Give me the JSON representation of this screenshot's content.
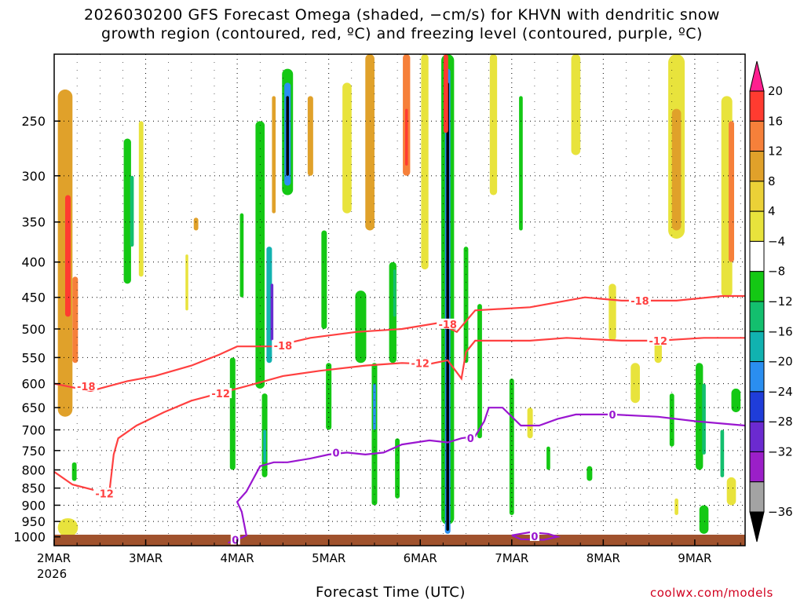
{
  "chart_data": {
    "type": "heatmap",
    "title_line1": "2026030200 GFS Forecast Omega (shaded, −cm/s) for KHVN with dendritic snow",
    "title_line2": "growth region (contoured, red, ºC) and freezing level (contoured, purple, ºC)",
    "xlabel": "Forecast Time (UTC)",
    "x_ticks": [
      "2MAR",
      "3MAR",
      "4MAR",
      "5MAR",
      "6MAR",
      "7MAR",
      "8MAR",
      "9MAR"
    ],
    "x_year": "2026",
    "x_range_days": [
      0,
      7.55
    ],
    "y_ticks": [
      "250",
      "300",
      "350",
      "400",
      "450",
      "500",
      "550",
      "600",
      "650",
      "700",
      "750",
      "800",
      "850",
      "900",
      "950",
      "1000"
    ],
    "y_range_hpa": [
      200,
      1030
    ],
    "colorbar": {
      "labels": [
        "20",
        "16",
        "12",
        "8",
        "4",
        "−4",
        "−8",
        "−12",
        "−16",
        "−20",
        "−24",
        "−28",
        "−32",
        "−36"
      ],
      "colors": [
        "#ff1f8f",
        "#ff3b30",
        "#f6803a",
        "#e0a12a",
        "#ebd137",
        "#e8e33c",
        "#ffffff",
        "#14c814",
        "#13bf6e",
        "#11b2b0",
        "#2a8ef0",
        "#1f3dd9",
        "#6b2ad0",
        "#9b1fc8",
        "#a3a3a3",
        "#000000"
      ]
    },
    "omega_blobs": [
      {
        "day": 0.12,
        "p1": 225,
        "p2": 670,
        "w": 0.16,
        "level": 8
      },
      {
        "day": 0.15,
        "p1": 320,
        "p2": 480,
        "w": 0.06,
        "level": 16
      },
      {
        "day": 0.23,
        "p1": 420,
        "p2": 560,
        "w": 0.06,
        "level": 12
      },
      {
        "day": 0.15,
        "p1": 940,
        "p2": 1000,
        "w": 0.22,
        "level": 4
      },
      {
        "day": 0.22,
        "p1": 780,
        "p2": 830,
        "w": 0.05,
        "level": -8
      },
      {
        "day": 0.8,
        "p1": 265,
        "p2": 430,
        "w": 0.08,
        "level": -8
      },
      {
        "day": 0.85,
        "p1": 300,
        "p2": 380,
        "w": 0.04,
        "level": -12
      },
      {
        "day": 0.95,
        "p1": 250,
        "p2": 420,
        "w": 0.05,
        "level": 4
      },
      {
        "day": 1.45,
        "p1": 390,
        "p2": 470,
        "w": 0.03,
        "level": 4
      },
      {
        "day": 1.55,
        "p1": 345,
        "p2": 360,
        "w": 0.05,
        "level": 8
      },
      {
        "day": 2.05,
        "p1": 340,
        "p2": 450,
        "w": 0.04,
        "level": -8
      },
      {
        "day": 1.95,
        "p1": 550,
        "p2": 800,
        "w": 0.06,
        "level": -8
      },
      {
        "day": 2.25,
        "p1": 250,
        "p2": 610,
        "w": 0.1,
        "level": -8
      },
      {
        "day": 2.3,
        "p1": 620,
        "p2": 820,
        "w": 0.06,
        "level": -8
      },
      {
        "day": 2.3,
        "p1": 700,
        "p2": 780,
        "w": 0.03,
        "level": -16
      },
      {
        "day": 2.35,
        "p1": 380,
        "p2": 560,
        "w": 0.06,
        "level": -16
      },
      {
        "day": 2.38,
        "p1": 430,
        "p2": 520,
        "w": 0.03,
        "level": -28
      },
      {
        "day": 2.55,
        "p1": 210,
        "p2": 320,
        "w": 0.12,
        "level": -8
      },
      {
        "day": 2.55,
        "p1": 220,
        "p2": 310,
        "w": 0.07,
        "level": -20
      },
      {
        "day": 2.55,
        "p1": 230,
        "p2": 300,
        "w": 0.03,
        "level": -36
      },
      {
        "day": 2.4,
        "p1": 230,
        "p2": 340,
        "w": 0.04,
        "level": 8
      },
      {
        "day": 2.8,
        "p1": 230,
        "p2": 300,
        "w": 0.06,
        "level": 8
      },
      {
        "day": 2.95,
        "p1": 360,
        "p2": 500,
        "w": 0.06,
        "level": -8
      },
      {
        "day": 3.0,
        "p1": 560,
        "p2": 700,
        "w": 0.06,
        "level": -8
      },
      {
        "day": 3.2,
        "p1": 220,
        "p2": 340,
        "w": 0.1,
        "level": 4
      },
      {
        "day": 3.35,
        "p1": 440,
        "p2": 560,
        "w": 0.12,
        "level": -8
      },
      {
        "day": 3.45,
        "p1": 200,
        "p2": 360,
        "w": 0.1,
        "level": 8
      },
      {
        "day": 3.5,
        "p1": 560,
        "p2": 900,
        "w": 0.06,
        "level": -8
      },
      {
        "day": 3.5,
        "p1": 600,
        "p2": 700,
        "w": 0.03,
        "level": -20
      },
      {
        "day": 3.7,
        "p1": 400,
        "p2": 560,
        "w": 0.08,
        "level": -8
      },
      {
        "day": 3.72,
        "p1": 410,
        "p2": 480,
        "w": 0.03,
        "level": -12
      },
      {
        "day": 3.85,
        "p1": 200,
        "p2": 300,
        "w": 0.08,
        "level": 12
      },
      {
        "day": 3.85,
        "p1": 240,
        "p2": 290,
        "w": 0.03,
        "level": 16
      },
      {
        "day": 3.75,
        "p1": 720,
        "p2": 880,
        "w": 0.05,
        "level": -8
      },
      {
        "day": 4.05,
        "p1": 200,
        "p2": 410,
        "w": 0.08,
        "level": 4
      },
      {
        "day": 4.3,
        "p1": 200,
        "p2": 960,
        "w": 0.14,
        "level": -8
      },
      {
        "day": 4.3,
        "p1": 210,
        "p2": 990,
        "w": 0.06,
        "level": -20
      },
      {
        "day": 4.3,
        "p1": 220,
        "p2": 980,
        "w": 0.03,
        "level": -36
      },
      {
        "day": 4.28,
        "p1": 200,
        "p2": 260,
        "w": 0.05,
        "level": 16
      },
      {
        "day": 4.5,
        "p1": 380,
        "p2": 560,
        "w": 0.05,
        "level": -8
      },
      {
        "day": 4.65,
        "p1": 460,
        "p2": 720,
        "w": 0.05,
        "level": -8
      },
      {
        "day": 4.8,
        "p1": 200,
        "p2": 320,
        "w": 0.08,
        "level": 4
      },
      {
        "day": 5.1,
        "p1": 230,
        "p2": 360,
        "w": 0.04,
        "level": -8
      },
      {
        "day": 5.0,
        "p1": 590,
        "p2": 930,
        "w": 0.05,
        "level": -8
      },
      {
        "day": 5.2,
        "p1": 650,
        "p2": 720,
        "w": 0.06,
        "level": 4
      },
      {
        "day": 5.4,
        "p1": 740,
        "p2": 800,
        "w": 0.04,
        "level": -8
      },
      {
        "day": 5.7,
        "p1": 200,
        "p2": 280,
        "w": 0.1,
        "level": 4
      },
      {
        "day": 5.85,
        "p1": 790,
        "p2": 830,
        "w": 0.06,
        "level": -8
      },
      {
        "day": 6.1,
        "p1": 430,
        "p2": 520,
        "w": 0.08,
        "level": 4
      },
      {
        "day": 6.35,
        "p1": 560,
        "p2": 640,
        "w": 0.1,
        "level": 4
      },
      {
        "day": 6.6,
        "p1": 520,
        "p2": 560,
        "w": 0.08,
        "level": 4
      },
      {
        "day": 6.8,
        "p1": 200,
        "p2": 370,
        "w": 0.18,
        "level": 4
      },
      {
        "day": 6.8,
        "p1": 240,
        "p2": 360,
        "w": 0.1,
        "level": 8
      },
      {
        "day": 6.75,
        "p1": 620,
        "p2": 740,
        "w": 0.05,
        "level": -8
      },
      {
        "day": 6.8,
        "p1": 880,
        "p2": 930,
        "w": 0.04,
        "level": 4
      },
      {
        "day": 7.05,
        "p1": 560,
        "p2": 800,
        "w": 0.08,
        "level": -8
      },
      {
        "day": 7.1,
        "p1": 600,
        "p2": 760,
        "w": 0.04,
        "level": -12
      },
      {
        "day": 7.1,
        "p1": 900,
        "p2": 990,
        "w": 0.1,
        "level": -8
      },
      {
        "day": 7.35,
        "p1": 230,
        "p2": 450,
        "w": 0.12,
        "level": 4
      },
      {
        "day": 7.4,
        "p1": 250,
        "p2": 400,
        "w": 0.06,
        "level": 12
      },
      {
        "day": 7.45,
        "p1": 610,
        "p2": 660,
        "w": 0.1,
        "level": -8
      },
      {
        "day": 7.4,
        "p1": 820,
        "p2": 900,
        "w": 0.1,
        "level": 4
      },
      {
        "day": 7.3,
        "p1": 700,
        "p2": 820,
        "w": 0.04,
        "level": -12
      }
    ],
    "contours": [
      {
        "label": "-18",
        "color": "#ff4040",
        "points": [
          [
            0,
            600
          ],
          [
            0.4,
            615
          ],
          [
            0.8,
            595
          ],
          [
            1.1,
            585
          ],
          [
            1.5,
            565
          ],
          [
            1.8,
            545
          ],
          [
            2.0,
            530
          ],
          [
            2.4,
            530
          ],
          [
            2.8,
            515
          ],
          [
            3.3,
            505
          ],
          [
            3.8,
            500
          ],
          [
            4.2,
            490
          ],
          [
            4.4,
            505
          ],
          [
            4.6,
            470
          ],
          [
            5.2,
            465
          ],
          [
            5.8,
            450
          ],
          [
            6.2,
            455
          ],
          [
            6.8,
            455
          ],
          [
            7.3,
            448
          ],
          [
            7.55,
            448
          ]
        ],
        "labels": [
          [
            0.35,
            605
          ],
          [
            2.5,
            528
          ],
          [
            4.3,
            492
          ],
          [
            6.4,
            455
          ]
        ]
      },
      {
        "label": "-12",
        "color": "#ff4040",
        "points": [
          [
            0,
            805
          ],
          [
            0.2,
            840
          ],
          [
            0.5,
            860
          ],
          [
            0.6,
            870
          ],
          [
            0.65,
            760
          ],
          [
            0.7,
            720
          ],
          [
            0.9,
            690
          ],
          [
            1.2,
            660
          ],
          [
            1.5,
            635
          ],
          [
            1.8,
            620
          ],
          [
            2.1,
            605
          ],
          [
            2.5,
            585
          ],
          [
            2.9,
            575
          ],
          [
            3.4,
            565
          ],
          [
            3.8,
            560
          ],
          [
            4.1,
            562
          ],
          [
            4.3,
            555
          ],
          [
            4.45,
            590
          ],
          [
            4.5,
            540
          ],
          [
            4.6,
            520
          ],
          [
            5.2,
            520
          ],
          [
            5.6,
            515
          ],
          [
            6.2,
            520
          ],
          [
            6.6,
            520
          ],
          [
            7.1,
            515
          ],
          [
            7.55,
            515
          ]
        ],
        "labels": [
          [
            0.55,
            865
          ],
          [
            1.82,
            620
          ],
          [
            4.0,
            560
          ],
          [
            6.6,
            520
          ]
        ]
      },
      {
        "label": "0",
        "color": "#9a16d0",
        "points": [
          [
            1.9,
            1020
          ],
          [
            2.0,
            1010
          ],
          [
            2.1,
            995
          ],
          [
            2.05,
            920
          ],
          [
            2.0,
            890
          ],
          [
            2.1,
            860
          ],
          [
            2.25,
            790
          ],
          [
            2.4,
            780
          ],
          [
            2.55,
            780
          ],
          [
            2.8,
            770
          ],
          [
            3.0,
            760
          ],
          [
            3.2,
            755
          ],
          [
            3.4,
            760
          ],
          [
            3.6,
            755
          ],
          [
            3.8,
            735
          ],
          [
            4.1,
            725
          ],
          [
            4.3,
            730
          ],
          [
            4.45,
            720
          ],
          [
            4.6,
            715
          ],
          [
            4.7,
            680
          ],
          [
            4.75,
            650
          ],
          [
            4.9,
            650
          ],
          [
            5.1,
            690
          ],
          [
            5.3,
            690
          ],
          [
            5.5,
            675
          ],
          [
            5.7,
            665
          ],
          [
            6.1,
            665
          ],
          [
            6.6,
            670
          ],
          [
            7.0,
            680
          ],
          [
            7.55,
            690
          ]
        ],
        "labels": [
          [
            1.98,
            1010
          ],
          [
            3.08,
            755
          ],
          [
            4.55,
            720
          ],
          [
            6.1,
            665
          ]
        ]
      },
      {
        "label": "0",
        "color": "#9a16d0",
        "points": [
          [
            5.0,
            995
          ],
          [
            5.2,
            985
          ],
          [
            5.4,
            990
          ],
          [
            5.5,
            1000
          ],
          [
            5.35,
            1010
          ],
          [
            5.1,
            1008
          ],
          [
            5.0,
            995
          ]
        ],
        "labels": [
          [
            5.25,
            998
          ]
        ]
      }
    ]
  },
  "credit": "coolwx.com/models"
}
